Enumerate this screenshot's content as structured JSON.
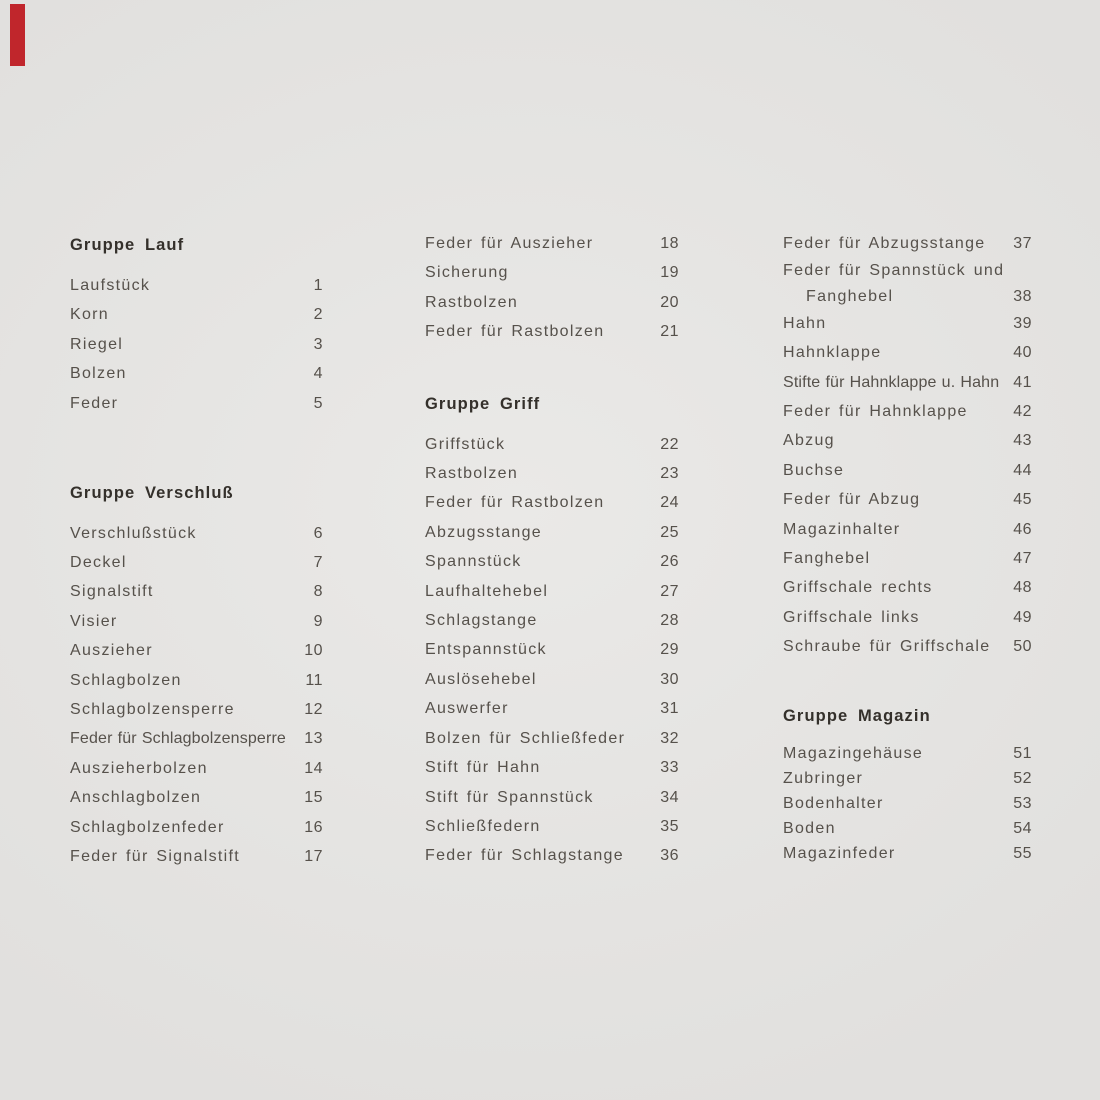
{
  "page": {
    "background_color": "#e5e4e2",
    "text_color": "#56514b",
    "heading_color": "#34302b",
    "corner_mark_color": "#c0262c"
  },
  "columns": [
    {
      "sections": [
        {
          "heading": "Gruppe Lauf",
          "items": [
            {
              "label": "Laufstück",
              "num": "1"
            },
            {
              "label": "Korn",
              "num": "2"
            },
            {
              "label": "Riegel",
              "num": "3"
            },
            {
              "label": "Bolzen",
              "num": "4"
            },
            {
              "label": "Feder",
              "num": "5"
            }
          ]
        },
        {
          "heading": "Gruppe Verschluß",
          "items": [
            {
              "label": "Verschlußstück",
              "num": "6"
            },
            {
              "label": "Deckel",
              "num": "7"
            },
            {
              "label": "Signalstift",
              "num": "8"
            },
            {
              "label": "Visier",
              "num": "9"
            },
            {
              "label": "Auszieher",
              "num": "10"
            },
            {
              "label": "Schlagbolzen",
              "num": "11"
            },
            {
              "label": "Schlagbolzensperre",
              "num": "12"
            },
            {
              "label": "Feder für Schlagbolzensperre",
              "num": "13"
            },
            {
              "label": "Auszieherbolzen",
              "num": "14"
            },
            {
              "label": "Anschlagbolzen",
              "num": "15"
            },
            {
              "label": "Schlagbolzenfeder",
              "num": "16"
            },
            {
              "label": "Feder für Signalstift",
              "num": "17"
            }
          ]
        }
      ]
    },
    {
      "sections": [
        {
          "items": [
            {
              "label": "Feder für Auszieher",
              "num": "18"
            },
            {
              "label": "Sicherung",
              "num": "19"
            },
            {
              "label": "Rastbolzen",
              "num": "20"
            },
            {
              "label": "Feder für Rastbolzen",
              "num": "21"
            }
          ]
        },
        {
          "heading": "Gruppe Griff",
          "items": [
            {
              "label": "Griffstück",
              "num": "22"
            },
            {
              "label": "Rastbolzen",
              "num": "23"
            },
            {
              "label": "Feder für Rastbolzen",
              "num": "24"
            },
            {
              "label": "Abzugsstange",
              "num": "25"
            },
            {
              "label": "Spannstück",
              "num": "26"
            },
            {
              "label": "Laufhaltehebel",
              "num": "27"
            },
            {
              "label": "Schlagstange",
              "num": "28"
            },
            {
              "label": "Entspannstück",
              "num": "29"
            },
            {
              "label": "Auslösehebel",
              "num": "30"
            },
            {
              "label": "Auswerfer",
              "num": "31"
            },
            {
              "label": "Bolzen für Schließfeder",
              "num": "32"
            },
            {
              "label": "Stift für Hahn",
              "num": "33"
            },
            {
              "label": "Stift für Spannstück",
              "num": "34"
            },
            {
              "label": "Schließfedern",
              "num": "35"
            },
            {
              "label": "Feder für Schlagstange",
              "num": "36"
            }
          ]
        }
      ]
    },
    {
      "sections": [
        {
          "items": [
            {
              "label": "Feder für Abzugsstange",
              "num": "37"
            },
            {
              "label_lines": [
                "Feder für Spannstück und",
                "Fanghebel"
              ],
              "num": "38"
            },
            {
              "label": "Hahn",
              "num": "39"
            },
            {
              "label": "Hahnklappe",
              "num": "40"
            },
            {
              "label": "Stifte für Hahnklappe u. Hahn",
              "num": "41"
            },
            {
              "label": "Feder für Hahnklappe",
              "num": "42"
            },
            {
              "label": "Abzug",
              "num": "43"
            },
            {
              "label": "Buchse",
              "num": "44"
            },
            {
              "label": "Feder für Abzug",
              "num": "45"
            },
            {
              "label": "Magazinhalter",
              "num": "46"
            },
            {
              "label": "Fanghebel",
              "num": "47"
            },
            {
              "label": "Griffschale rechts",
              "num": "48"
            },
            {
              "label": "Griffschale links",
              "num": "49"
            },
            {
              "label": "Schraube für Griffschale",
              "num": "50"
            }
          ]
        },
        {
          "heading": "Gruppe Magazin",
          "tight": true,
          "items": [
            {
              "label": "Magazingehäuse",
              "num": "51"
            },
            {
              "label": "Zubringer",
              "num": "52"
            },
            {
              "label": "Bodenhalter",
              "num": "53"
            },
            {
              "label": "Boden",
              "num": "54"
            },
            {
              "label": "Magazinfeder",
              "num": "55"
            }
          ]
        }
      ]
    }
  ]
}
